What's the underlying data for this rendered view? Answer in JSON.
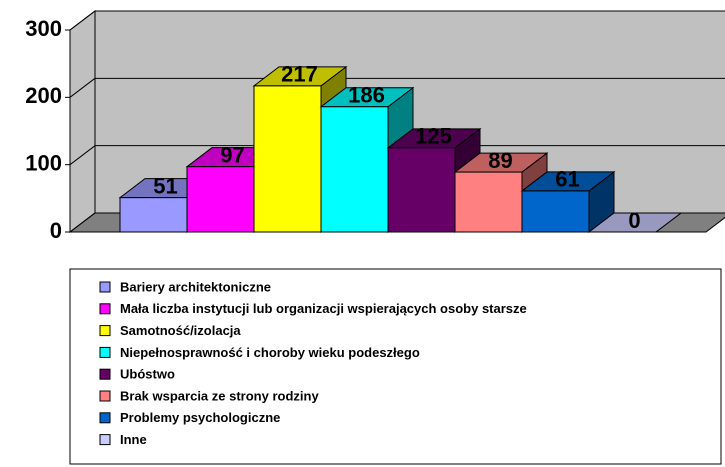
{
  "chart_data": {
    "type": "bar3d",
    "categories": [
      "Bariery architektoniczne",
      "Mała liczba instytucji lub organizacji wspierających osoby starsze",
      "Samotność/izolacja",
      "Niepełnosprawność i choroby wieku podeszłego",
      "Ubóstwo",
      "Brak wsparcia ze strony rodziny",
      "Problemy psychologiczne",
      "Inne"
    ],
    "values": [
      51,
      97,
      217,
      186,
      125,
      89,
      61,
      0
    ],
    "colors": [
      "#9999ff",
      "#ff00ff",
      "#ffff00",
      "#00ffff",
      "#660066",
      "#ff8080",
      "#0066cc",
      "#ccccff"
    ],
    "ylim": [
      0,
      300
    ],
    "yticks": [
      0,
      100,
      200,
      300
    ],
    "grid": true,
    "legend": "bottom"
  }
}
